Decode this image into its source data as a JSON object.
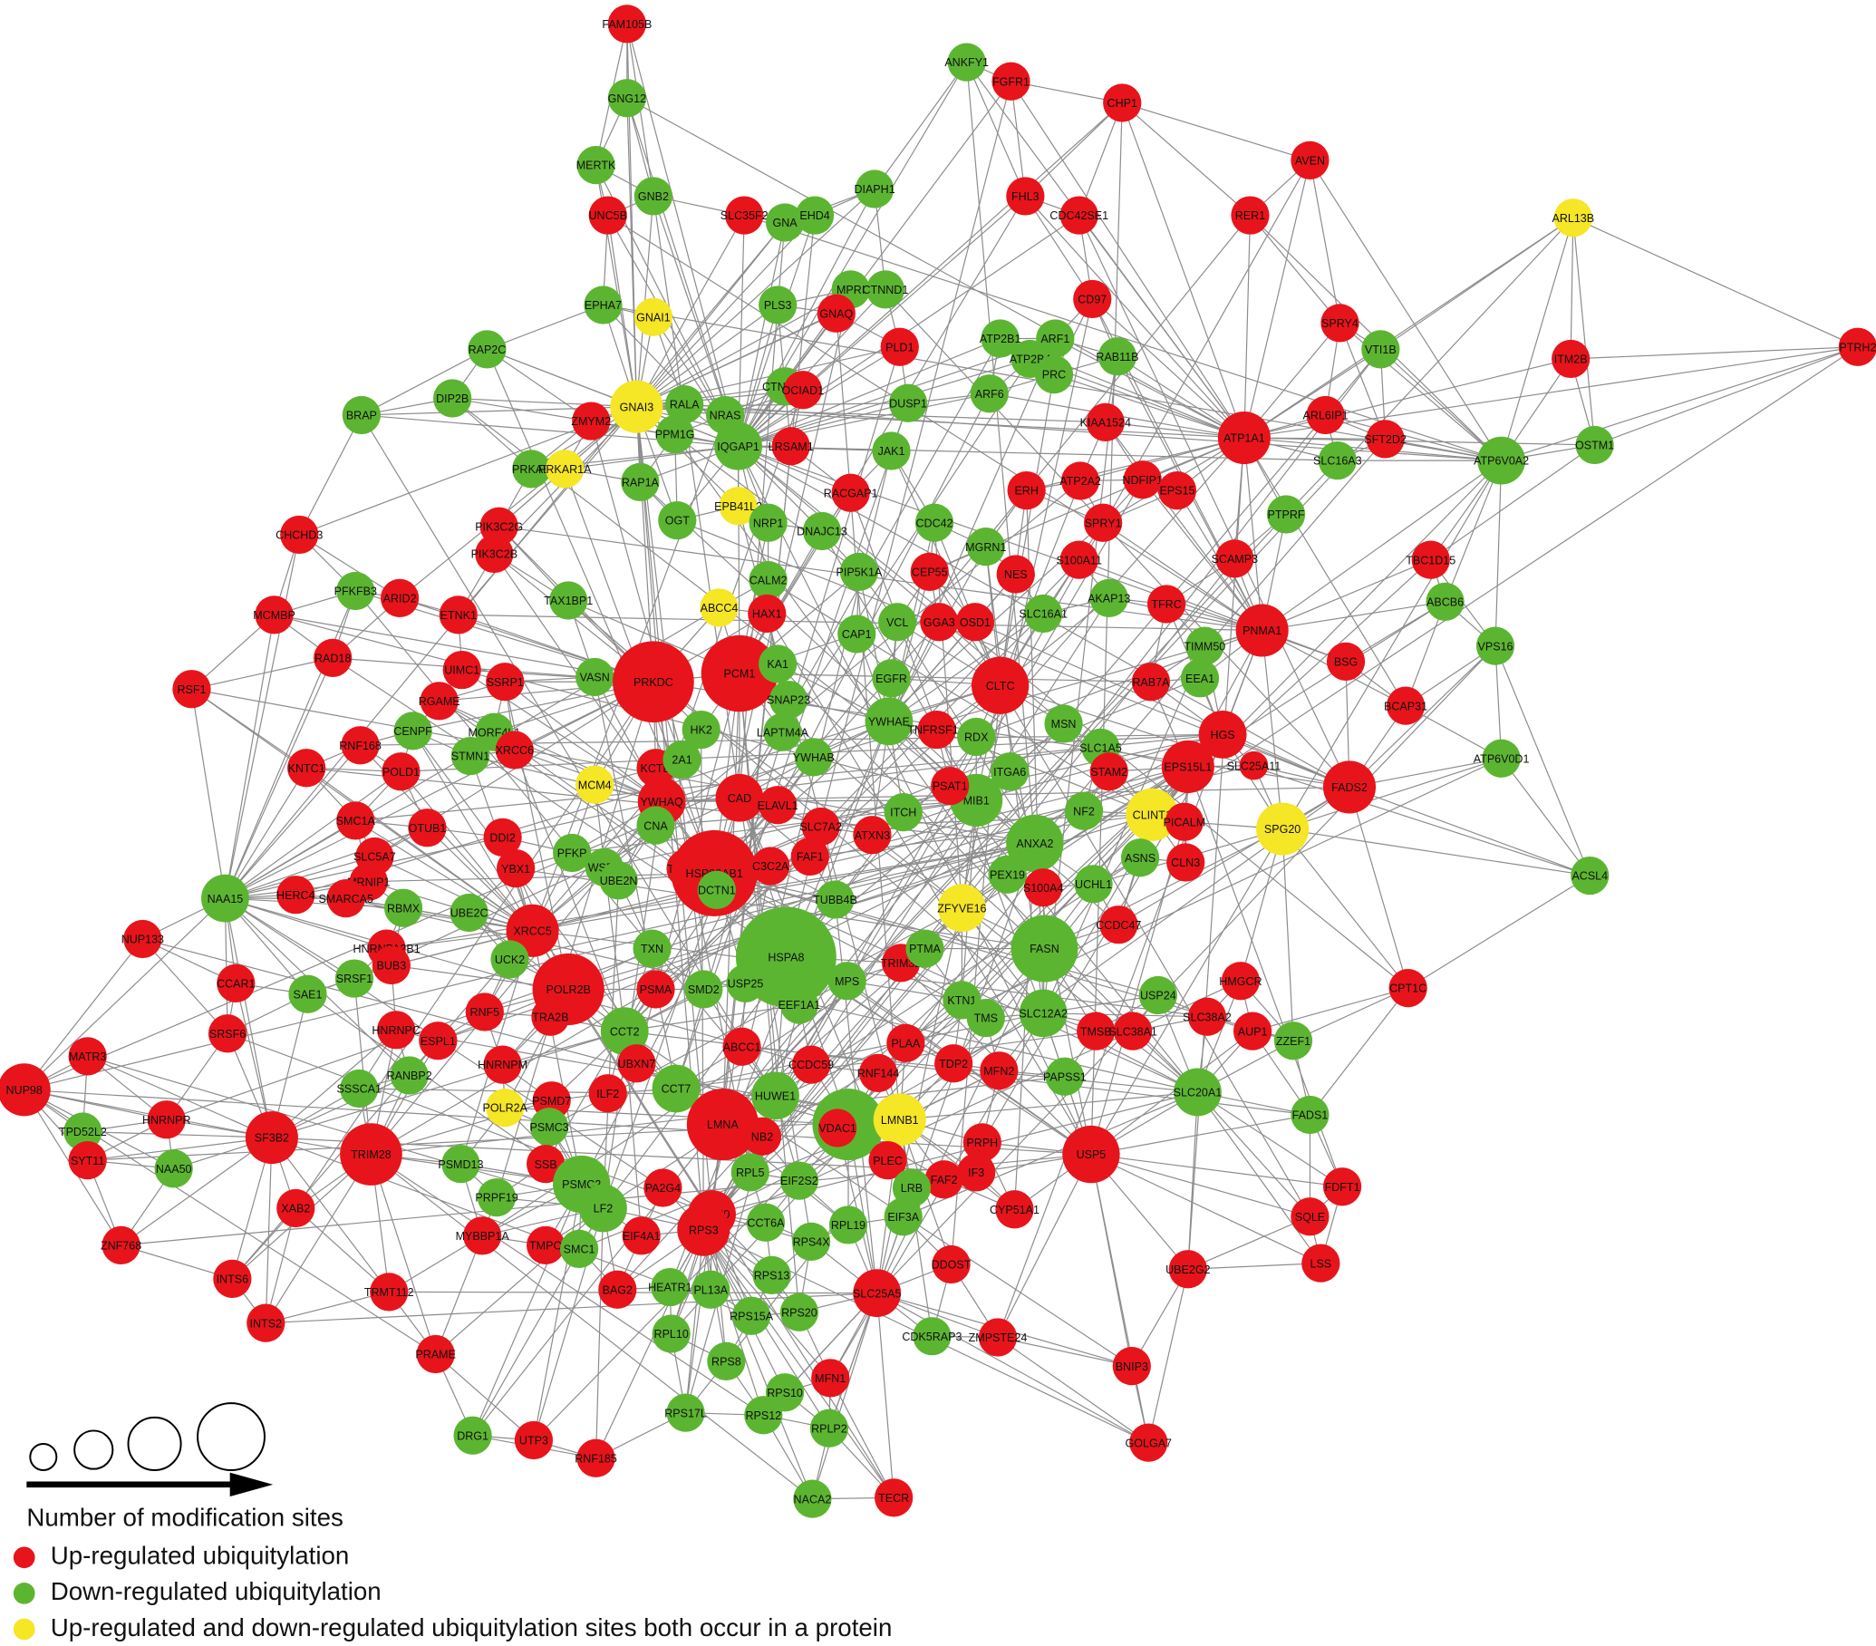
{
  "nodes": [
    {
      "label": "FAM105B",
      "color": "#e8141b"
    },
    {
      "label": "GNG12",
      "color": "#5cb531"
    },
    {
      "label": "ANKFY1",
      "color": "#5cb531"
    },
    {
      "label": "FGFR1",
      "color": "#e8141b"
    },
    {
      "label": "CHP1",
      "color": "#e8141b"
    },
    {
      "label": "AVEN",
      "color": "#e8141b"
    },
    {
      "label": "MERTK",
      "color": "#5cb531"
    },
    {
      "label": "GNB2",
      "color": "#5cb531"
    },
    {
      "label": "UNC5B",
      "color": "#e8141b"
    },
    {
      "label": "SLC35F2",
      "color": "#e8141b"
    },
    {
      "label": "GNA",
      "color": "#5cb531"
    },
    {
      "label": "EHD4",
      "color": "#5cb531"
    },
    {
      "label": "DIAPH1",
      "color": "#5cb531"
    },
    {
      "label": "FHL3",
      "color": "#e8141b"
    },
    {
      "label": "CDC42SE1",
      "color": "#e8141b"
    },
    {
      "label": "RER1",
      "color": "#e8141b"
    },
    {
      "label": "ARL13B",
      "color": "#f5e626"
    },
    {
      "label": "EPHA7",
      "color": "#5cb531"
    },
    {
      "label": "GNAI1",
      "color": "#f5e626"
    },
    {
      "label": "PLS3",
      "color": "#5cb531"
    },
    {
      "label": "MPRI",
      "color": "#5cb531"
    },
    {
      "label": "CTNND1",
      "color": "#5cb531"
    },
    {
      "label": "GNAQ",
      "color": "#e8141b"
    },
    {
      "label": "CD97",
      "color": "#e8141b"
    },
    {
      "label": "SPRY4",
      "color": "#e8141b"
    },
    {
      "label": "RAP2C",
      "color": "#5cb531"
    },
    {
      "label": "ATP2B1",
      "color": "#5cb531"
    },
    {
      "label": "ARF1",
      "color": "#5cb531"
    },
    {
      "label": "PLD1",
      "color": "#e8141b"
    },
    {
      "label": "VTI1B",
      "color": "#5cb531"
    },
    {
      "label": "ITM2B",
      "color": "#e8141b"
    },
    {
      "label": "PTRH2",
      "color": "#e8141b"
    },
    {
      "label": "DIP2B",
      "color": "#5cb531"
    },
    {
      "label": "BRAP",
      "color": "#5cb531"
    },
    {
      "label": "GNAI3",
      "color": "#f5e626"
    },
    {
      "label": "RALA",
      "color": "#5cb531"
    },
    {
      "label": "CTNNA1",
      "color": "#5cb531"
    },
    {
      "label": "OCIAD1",
      "color": "#e8141b"
    },
    {
      "label": "ATP2B4",
      "color": "#5cb531"
    },
    {
      "label": "RAB11B",
      "color": "#5cb531"
    },
    {
      "label": "DUSP1",
      "color": "#5cb531"
    },
    {
      "label": "ARF6",
      "color": "#5cb531"
    },
    {
      "label": "PRC",
      "color": "#5cb531"
    },
    {
      "label": "ZMYM2",
      "color": "#e8141b"
    },
    {
      "label": "NRAS",
      "color": "#5cb531"
    },
    {
      "label": "PPM1G",
      "color": "#5cb531"
    },
    {
      "label": "ARL6IP1",
      "color": "#e8141b"
    },
    {
      "label": "SFT2D2",
      "color": "#e8141b"
    },
    {
      "label": "OSTM1",
      "color": "#5cb531"
    },
    {
      "label": "ATP1A1",
      "color": "#e8141b"
    },
    {
      "label": "KIAA1524",
      "color": "#e8141b"
    },
    {
      "label": "IQGAP1",
      "color": "#5cb531"
    },
    {
      "label": "LRSAM1",
      "color": "#e8141b"
    },
    {
      "label": "JAK1",
      "color": "#5cb531"
    },
    {
      "label": "PRKAB",
      "color": "#5cb531"
    },
    {
      "label": "PRKAR1A",
      "color": "#f5e626"
    },
    {
      "label": "RAP1A",
      "color": "#5cb531"
    },
    {
      "label": "RACGAP1",
      "color": "#e8141b"
    },
    {
      "label": "ATP2A2",
      "color": "#e8141b"
    },
    {
      "label": "NDFIP1",
      "color": "#e8141b"
    },
    {
      "label": "EPS15",
      "color": "#e8141b"
    },
    {
      "label": "ATP6V0A2",
      "color": "#5cb531"
    },
    {
      "label": "SLC16A3",
      "color": "#5cb531"
    },
    {
      "label": "ERH",
      "color": "#e8141b"
    },
    {
      "label": "EPB41L3",
      "color": "#f5e626"
    },
    {
      "label": "OGT",
      "color": "#5cb531"
    },
    {
      "label": "NRP1",
      "color": "#5cb531"
    },
    {
      "label": "DNAJC13",
      "color": "#5cb531"
    },
    {
      "label": "CDC42",
      "color": "#5cb531"
    },
    {
      "label": "SPRY1",
      "color": "#e8141b"
    },
    {
      "label": "PTPRF",
      "color": "#5cb531"
    },
    {
      "label": "PIK3C2G",
      "color": "#e8141b"
    },
    {
      "label": "CHCHD3",
      "color": "#e8141b"
    },
    {
      "label": "PIK3C2B",
      "color": "#e8141b"
    },
    {
      "label": "CEP55",
      "color": "#e8141b"
    },
    {
      "label": "MGRN1",
      "color": "#5cb531"
    },
    {
      "label": "S100A11",
      "color": "#e8141b"
    },
    {
      "label": "SCAMP3",
      "color": "#e8141b"
    },
    {
      "label": "NES",
      "color": "#e8141b"
    },
    {
      "label": "PIP5K1A",
      "color": "#5cb531"
    },
    {
      "label": "CALM2",
      "color": "#5cb531"
    },
    {
      "label": "PFKFB3",
      "color": "#5cb531"
    },
    {
      "label": "TAX1BP1",
      "color": "#5cb531"
    },
    {
      "label": "ETNK1",
      "color": "#e8141b"
    },
    {
      "label": "ARID2",
      "color": "#e8141b"
    },
    {
      "label": "TBC1D15",
      "color": "#e8141b"
    },
    {
      "label": "ABCB6",
      "color": "#5cb531"
    },
    {
      "label": "MCMBP",
      "color": "#e8141b"
    },
    {
      "label": "ABCC4",
      "color": "#f5e626"
    },
    {
      "label": "HAX1",
      "color": "#e8141b"
    },
    {
      "label": "CAP1",
      "color": "#5cb531"
    },
    {
      "label": "VCL",
      "color": "#5cb531"
    },
    {
      "label": "GGA3",
      "color": "#e8141b"
    },
    {
      "label": "OSD1",
      "color": "#e8141b"
    },
    {
      "label": "SLC16A1",
      "color": "#5cb531"
    },
    {
      "label": "AKAP13",
      "color": "#5cb531"
    },
    {
      "label": "TFRC",
      "color": "#e8141b"
    },
    {
      "label": "PNMA1",
      "color": "#e8141b"
    },
    {
      "label": "TIMM50",
      "color": "#5cb531"
    },
    {
      "label": "BSG",
      "color": "#e8141b"
    },
    {
      "label": "VPS16",
      "color": "#5cb531"
    },
    {
      "label": "RAD18",
      "color": "#e8141b"
    },
    {
      "label": "UIMC1",
      "color": "#e8141b"
    },
    {
      "label": "SSRP1",
      "color": "#e8141b"
    },
    {
      "label": "VASN",
      "color": "#5cb531"
    },
    {
      "label": "PRKDC",
      "color": "#e8141b"
    },
    {
      "label": "PCM1",
      "color": "#e8141b"
    },
    {
      "label": "KA1",
      "color": "#5cb531"
    },
    {
      "label": "EGFR",
      "color": "#5cb531"
    },
    {
      "label": "CLTC",
      "color": "#e8141b"
    },
    {
      "label": "RAB7A",
      "color": "#e8141b"
    },
    {
      "label": "EEA1",
      "color": "#5cb531"
    },
    {
      "label": "RSF1",
      "color": "#e8141b"
    },
    {
      "label": "RGAME",
      "color": "#e8141b"
    },
    {
      "label": "SNAP23",
      "color": "#5cb531"
    },
    {
      "label": "BCAP31",
      "color": "#e8141b"
    },
    {
      "label": "CENPF",
      "color": "#5cb531"
    },
    {
      "label": "YWHAE",
      "color": "#5cb531"
    },
    {
      "label": "HK2",
      "color": "#5cb531"
    },
    {
      "label": "MORF4L1",
      "color": "#5cb531"
    },
    {
      "label": "LAPTM4A",
      "color": "#5cb531"
    },
    {
      "label": "TNFRSF1A",
      "color": "#e8141b"
    },
    {
      "label": "RDX",
      "color": "#5cb531"
    },
    {
      "label": "MSN",
      "color": "#5cb531"
    },
    {
      "label": "HGS",
      "color": "#e8141b"
    },
    {
      "label": "RNF168",
      "color": "#e8141b"
    },
    {
      "label": "STMN1",
      "color": "#5cb531"
    },
    {
      "label": "XRCC6",
      "color": "#e8141b"
    },
    {
      "label": "YWHAB",
      "color": "#5cb531"
    },
    {
      "label": "SLC1A5",
      "color": "#5cb531"
    },
    {
      "label": "KNTC1",
      "color": "#e8141b"
    },
    {
      "label": "POLD1",
      "color": "#e8141b"
    },
    {
      "label": "KCTD",
      "color": "#e8141b"
    },
    {
      "label": "2A1",
      "color": "#5cb531"
    },
    {
      "label": "ITGA6",
      "color": "#5cb531"
    },
    {
      "label": "STAM2",
      "color": "#e8141b"
    },
    {
      "label": "EPS15L1",
      "color": "#e8141b"
    },
    {
      "label": "SLC25A11",
      "color": "#e8141b"
    },
    {
      "label": "FADS2",
      "color": "#e8141b"
    },
    {
      "label": "MCM4",
      "color": "#f5e626"
    },
    {
      "label": "MIB1",
      "color": "#5cb531"
    },
    {
      "label": "PSAT1",
      "color": "#e8141b"
    },
    {
      "label": "YWHAQ",
      "color": "#e8141b"
    },
    {
      "label": "CAD",
      "color": "#e8141b"
    },
    {
      "label": "ELAVL1",
      "color": "#e8141b"
    },
    {
      "label": "CLINT1",
      "color": "#f5e626"
    },
    {
      "label": "PICALM",
      "color": "#e8141b"
    },
    {
      "label": "SPG20",
      "color": "#f5e626"
    },
    {
      "label": "ATP6V0D1",
      "color": "#5cb531"
    },
    {
      "label": "SMC1A",
      "color": "#e8141b"
    },
    {
      "label": "OTUB1",
      "color": "#e8141b"
    },
    {
      "label": "DDI2",
      "color": "#e8141b"
    },
    {
      "label": "CNA",
      "color": "#5cb531"
    },
    {
      "label": "SLC7A2",
      "color": "#e8141b"
    },
    {
      "label": "ATXN3",
      "color": "#e8141b"
    },
    {
      "label": "ITCH",
      "color": "#5cb531"
    },
    {
      "label": "NF2",
      "color": "#5cb531"
    },
    {
      "label": "SLC5A7",
      "color": "#e8141b"
    },
    {
      "label": "ANXA2",
      "color": "#5cb531"
    },
    {
      "label": "PFKP",
      "color": "#5cb531"
    },
    {
      "label": "YBX1",
      "color": "#e8141b"
    },
    {
      "label": "WSR1",
      "color": "#5cb531"
    },
    {
      "label": "TOP2A",
      "color": "#e8141b"
    },
    {
      "label": "HSP90AB1",
      "color": "#e8141b"
    },
    {
      "label": "C3C2A",
      "color": "#e8141b"
    },
    {
      "label": "FAF1",
      "color": "#e8141b"
    },
    {
      "label": "PEX19",
      "color": "#5cb531"
    },
    {
      "label": "ASNS",
      "color": "#5cb531"
    },
    {
      "label": "CLN3",
      "color": "#e8141b"
    },
    {
      "label": "MRNIP1",
      "color": "#e8141b"
    },
    {
      "label": "ACSL4",
      "color": "#5cb531"
    },
    {
      "label": "NAA15",
      "color": "#5cb531"
    },
    {
      "label": "HERC4",
      "color": "#e8141b"
    },
    {
      "label": "SMARCA5",
      "color": "#e8141b"
    },
    {
      "label": "RBMX",
      "color": "#5cb531"
    },
    {
      "label": "UBE2C",
      "color": "#5cb531"
    },
    {
      "label": "UBE2N",
      "color": "#5cb531"
    },
    {
      "label": "DCTN1",
      "color": "#5cb531"
    },
    {
      "label": "TUBB4B",
      "color": "#5cb531"
    },
    {
      "label": "ZFYVE16",
      "color": "#f5e626"
    },
    {
      "label": "S100A4",
      "color": "#e8141b"
    },
    {
      "label": "UCHL1",
      "color": "#5cb531"
    },
    {
      "label": "CCDC47",
      "color": "#e8141b"
    },
    {
      "label": "NUP133",
      "color": "#e8141b"
    },
    {
      "label": "HNRNPA2B1",
      "color": "#e8141b"
    },
    {
      "label": "XRCC5",
      "color": "#e8141b"
    },
    {
      "label": "TXN",
      "color": "#5cb531"
    },
    {
      "label": "HSPA8",
      "color": "#5cb531"
    },
    {
      "label": "TRIM32",
      "color": "#e8141b"
    },
    {
      "label": "FASN",
      "color": "#5cb531"
    },
    {
      "label": "UCK2",
      "color": "#5cb531"
    },
    {
      "label": "BUB3",
      "color": "#e8141b"
    },
    {
      "label": "CCAR1",
      "color": "#e8141b"
    },
    {
      "label": "SAE1",
      "color": "#5cb531"
    },
    {
      "label": "SRSF1",
      "color": "#5cb531"
    },
    {
      "label": "POLR2B",
      "color": "#e8141b"
    },
    {
      "label": "PSMA",
      "color": "#e8141b"
    },
    {
      "label": "SMD2",
      "color": "#5cb531"
    },
    {
      "label": "USP25",
      "color": "#5cb531"
    },
    {
      "label": "MPS",
      "color": "#5cb531"
    },
    {
      "label": "PTMA",
      "color": "#5cb531"
    },
    {
      "label": "USP24",
      "color": "#5cb531"
    },
    {
      "label": "HMGCR",
      "color": "#e8141b"
    },
    {
      "label": "CPT1C",
      "color": "#e8141b"
    },
    {
      "label": "RNF5",
      "color": "#e8141b"
    },
    {
      "label": "KTN1",
      "color": "#5cb531"
    },
    {
      "label": "SLC12A2",
      "color": "#5cb531"
    },
    {
      "label": "HNRNPC",
      "color": "#e8141b"
    },
    {
      "label": "ESPL1",
      "color": "#e8141b"
    },
    {
      "label": "TRA2B",
      "color": "#e8141b"
    },
    {
      "label": "CCT2",
      "color": "#5cb531"
    },
    {
      "label": "EEF1A1",
      "color": "#5cb531"
    },
    {
      "label": "TMS",
      "color": "#5cb531"
    },
    {
      "label": "TMSB",
      "color": "#e8141b"
    },
    {
      "label": "SLC38A1",
      "color": "#e8141b"
    },
    {
      "label": "SLC38A2",
      "color": "#e8141b"
    },
    {
      "label": "AUP1",
      "color": "#e8141b"
    },
    {
      "label": "MATR3",
      "color": "#e8141b"
    },
    {
      "label": "SRSF6",
      "color": "#e8141b"
    },
    {
      "label": "UBXN7",
      "color": "#e8141b"
    },
    {
      "label": "ABCC1",
      "color": "#e8141b"
    },
    {
      "label": "CCDC59",
      "color": "#e8141b"
    },
    {
      "label": "PLAA",
      "color": "#e8141b"
    },
    {
      "label": "TDP2",
      "color": "#e8141b"
    },
    {
      "label": "MFN2",
      "color": "#e8141b"
    },
    {
      "label": "ZZEF1",
      "color": "#5cb531"
    },
    {
      "label": "RNF144",
      "color": "#e8141b"
    },
    {
      "label": "NUP98",
      "color": "#e8141b"
    },
    {
      "label": "HNRNPM",
      "color": "#e8141b"
    },
    {
      "label": "RANBP2",
      "color": "#5cb531"
    },
    {
      "label": "SSSCA1",
      "color": "#5cb531"
    },
    {
      "label": "CCT7",
      "color": "#5cb531"
    },
    {
      "label": "HUWE1",
      "color": "#5cb531"
    },
    {
      "label": "PAPSS1",
      "color": "#5cb531"
    },
    {
      "label": "ILF2",
      "color": "#e8141b"
    },
    {
      "label": "PSMD7",
      "color": "#e8141b"
    },
    {
      "label": "POLR2A",
      "color": "#f5e626"
    },
    {
      "label": "PSMC3",
      "color": "#5cb531"
    },
    {
      "label": "LMNA",
      "color": "#e8141b"
    },
    {
      "label": "NB2",
      "color": "#e8141b"
    },
    {
      "label": "P",
      "color": "#5cb531"
    },
    {
      "label": "VDAC1",
      "color": "#e8141b"
    },
    {
      "label": "LMNB1",
      "color": "#f5e626"
    },
    {
      "label": "SLC20A1",
      "color": "#5cb531"
    },
    {
      "label": "FADS1",
      "color": "#5cb531"
    },
    {
      "label": "HNRNPR",
      "color": "#e8141b"
    },
    {
      "label": "TPD52L2",
      "color": "#5cb531"
    },
    {
      "label": "SF3B2",
      "color": "#e8141b"
    },
    {
      "label": "TRIM28",
      "color": "#e8141b"
    },
    {
      "label": "SYT11",
      "color": "#e8141b"
    },
    {
      "label": "PRPH",
      "color": "#e8141b"
    },
    {
      "label": "USP5",
      "color": "#e8141b"
    },
    {
      "label": "NAA50",
      "color": "#5cb531"
    },
    {
      "label": "PSMD13",
      "color": "#5cb531"
    },
    {
      "label": "SSB",
      "color": "#e8141b"
    },
    {
      "label": "PLEC",
      "color": "#e8141b"
    },
    {
      "label": "RPL5",
      "color": "#5cb531"
    },
    {
      "label": "IF3",
      "color": "#e8141b"
    },
    {
      "label": "FAF2",
      "color": "#e8141b"
    },
    {
      "label": "PSMC2",
      "color": "#5cb531"
    },
    {
      "label": "LF2",
      "color": "#5cb531"
    },
    {
      "label": "PRPF19",
      "color": "#5cb531"
    },
    {
      "label": "PA2G4",
      "color": "#e8141b"
    },
    {
      "label": "EIF2S2",
      "color": "#5cb531"
    },
    {
      "label": "LRB",
      "color": "#5cb531"
    },
    {
      "label": "FDFT1",
      "color": "#e8141b"
    },
    {
      "label": "CYP51A1",
      "color": "#e8141b"
    },
    {
      "label": "XAB2",
      "color": "#e8141b"
    },
    {
      "label": "RPLP0",
      "color": "#e8141b"
    },
    {
      "label": "RPS3",
      "color": "#e8141b"
    },
    {
      "label": "CCT6A",
      "color": "#5cb531"
    },
    {
      "label": "RPL19",
      "color": "#5cb531"
    },
    {
      "label": "EIF3A",
      "color": "#5cb531"
    },
    {
      "label": "SQLE",
      "color": "#e8141b"
    },
    {
      "label": "ZNF768",
      "color": "#e8141b"
    },
    {
      "label": "MYBBP1A",
      "color": "#e8141b"
    },
    {
      "label": "TMPO",
      "color": "#e8141b"
    },
    {
      "label": "EIF4A1",
      "color": "#e8141b"
    },
    {
      "label": "SMC1",
      "color": "#5cb531"
    },
    {
      "label": "RPS4X",
      "color": "#5cb531"
    },
    {
      "label": "DDOST",
      "color": "#e8141b"
    },
    {
      "label": "UBE2G2",
      "color": "#e8141b"
    },
    {
      "label": "LSS",
      "color": "#e8141b"
    },
    {
      "label": "INTS6",
      "color": "#e8141b"
    },
    {
      "label": "TRMT112",
      "color": "#e8141b"
    },
    {
      "label": "BAG2",
      "color": "#e8141b"
    },
    {
      "label": "HEATR1",
      "color": "#5cb531"
    },
    {
      "label": "PL13A",
      "color": "#5cb531"
    },
    {
      "label": "RPS13",
      "color": "#5cb531"
    },
    {
      "label": "SLC25A5",
      "color": "#e8141b"
    },
    {
      "label": "INTS2",
      "color": "#e8141b"
    },
    {
      "label": "RPS15A",
      "color": "#5cb531"
    },
    {
      "label": "RPS20",
      "color": "#5cb531"
    },
    {
      "label": "ZMPSTE24",
      "color": "#e8141b"
    },
    {
      "label": "CDK5RAP3",
      "color": "#5cb531"
    },
    {
      "label": "RPL10",
      "color": "#5cb531"
    },
    {
      "label": "PRAME",
      "color": "#e8141b"
    },
    {
      "label": "BNIP3",
      "color": "#e8141b"
    },
    {
      "label": "MFN1",
      "color": "#e8141b"
    },
    {
      "label": "RPS8",
      "color": "#5cb531"
    },
    {
      "label": "RPS10",
      "color": "#5cb531"
    },
    {
      "label": "RPS17L",
      "color": "#5cb531"
    },
    {
      "label": "RPS12",
      "color": "#5cb531"
    },
    {
      "label": "RPLP2",
      "color": "#5cb531"
    },
    {
      "label": "DRG1",
      "color": "#5cb531"
    },
    {
      "label": "UTP3",
      "color": "#e8141b"
    },
    {
      "label": "RNF185",
      "color": "#e8141b"
    },
    {
      "label": "GOLGA7",
      "color": "#e8141b"
    },
    {
      "label": "NACA2",
      "color": "#5cb531"
    },
    {
      "label": "TECR",
      "color": "#e8141b"
    }
  ],
  "legend": {
    "title": "Number of modification sites",
    "items": [
      {
        "label": "Up-regulated ubiquitylation",
        "color": "#e8141b"
      },
      {
        "label": "Down-regulated ubiquitylation",
        "color": "#5cb531"
      },
      {
        "label": "Up-regulated and down-regulated ubiquitylation sites both occur in a protein",
        "color": "#f5e626"
      }
    ]
  }
}
